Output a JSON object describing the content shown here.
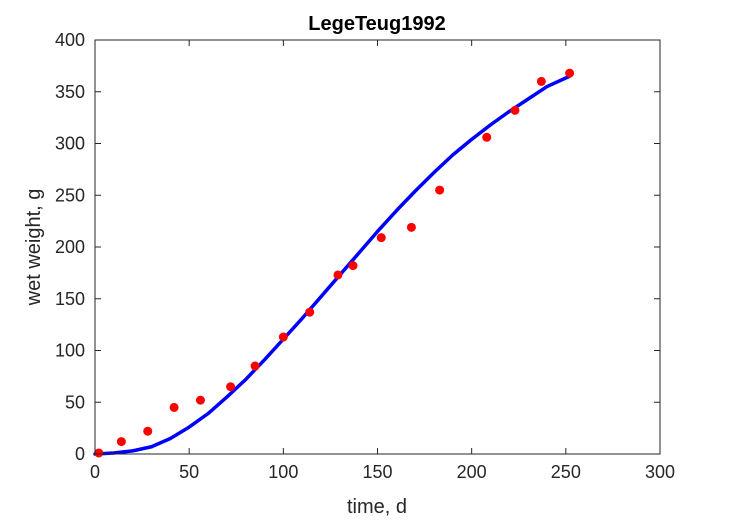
{
  "chart_data": {
    "type": "scatter",
    "title": "LegeTeug1992",
    "xlabel": "time, d",
    "ylabel": "wet weight, g",
    "xlim": [
      0,
      300
    ],
    "ylim": [
      0,
      400
    ],
    "xticks": [
      0,
      50,
      100,
      150,
      200,
      250,
      300
    ],
    "yticks": [
      0,
      50,
      100,
      150,
      200,
      250,
      300,
      350,
      400
    ],
    "grid": false,
    "series": [
      {
        "kind": "markers",
        "color": "#ff0000",
        "points": [
          [
            2,
            1
          ],
          [
            14,
            12
          ],
          [
            28,
            22
          ],
          [
            42,
            45
          ],
          [
            56,
            52
          ],
          [
            72,
            65
          ],
          [
            85,
            85
          ],
          [
            100,
            113
          ],
          [
            114,
            137
          ],
          [
            129,
            173
          ],
          [
            137,
            182
          ],
          [
            152,
            209
          ],
          [
            168,
            219
          ],
          [
            183,
            255
          ],
          [
            208,
            306
          ],
          [
            223,
            332
          ],
          [
            237,
            360
          ],
          [
            252,
            368
          ]
        ]
      },
      {
        "kind": "line",
        "color": "#0000ff",
        "points": [
          [
            0,
            0
          ],
          [
            10,
            1
          ],
          [
            20,
            3
          ],
          [
            30,
            7
          ],
          [
            40,
            15
          ],
          [
            50,
            26
          ],
          [
            60,
            39
          ],
          [
            70,
            55
          ],
          [
            80,
            72
          ],
          [
            90,
            91
          ],
          [
            100,
            111
          ],
          [
            110,
            131
          ],
          [
            120,
            152
          ],
          [
            130,
            173
          ],
          [
            140,
            194
          ],
          [
            150,
            215
          ],
          [
            160,
            235
          ],
          [
            170,
            254
          ],
          [
            180,
            272
          ],
          [
            190,
            289
          ],
          [
            200,
            304
          ],
          [
            210,
            318
          ],
          [
            220,
            331
          ],
          [
            230,
            343
          ],
          [
            240,
            355
          ],
          [
            252,
            365
          ]
        ]
      }
    ]
  }
}
